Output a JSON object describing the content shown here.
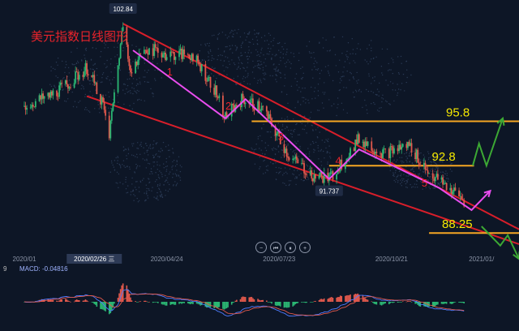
{
  "chart_data": {
    "type": "candlestick",
    "title": "美元指数日线图形",
    "price_axis": {
      "min": 87,
      "max": 104
    },
    "time_axis": {
      "start": "2020-01-01",
      "end": "2021-01-31"
    },
    "date_labels": [
      {
        "date": "2020-01-01",
        "text": "2020/01"
      },
      {
        "date": "2020-04-24",
        "text": "2020/04/24"
      },
      {
        "date": "2020-07-23",
        "text": "2020/07/23"
      },
      {
        "date": "2020-10-21",
        "text": "2020/10/21"
      },
      {
        "date": "2021-01-01",
        "text": "2021/01/"
      }
    ],
    "cursor_date_label": "2020/02/26 三",
    "price_tags": [
      {
        "date": "2020-03-20",
        "price": 102.84,
        "text": "102.84"
      },
      {
        "date": "2020-09-01",
        "price": 91.737,
        "text": "91.737"
      }
    ],
    "horizontal_levels": [
      {
        "price": 95.8,
        "text": "95.8",
        "color": "#f5a623",
        "start": "2020-07-01",
        "end": "2021-01-31"
      },
      {
        "price": 92.8,
        "text": "92.8",
        "color": "#f5a623",
        "start": "2020-09-01",
        "end": "2020-12-26"
      },
      {
        "price": 88.25,
        "text": "88.25",
        "color": "#f5a623",
        "start": "2020-11-20",
        "end": "2021-01-31"
      }
    ],
    "trend_lines": [
      {
        "name": "upper",
        "color": "#d81e2a",
        "from": {
          "date": "2020-03-20",
          "price": 102.4
        },
        "to": {
          "date": "2021-01-31",
          "price": 88.5
        }
      },
      {
        "name": "lower",
        "color": "#d81e2a",
        "from": {
          "date": "2020-02-20",
          "price": 97.5
        },
        "to": {
          "date": "2021-01-31",
          "price": 87.5
        }
      }
    ],
    "wave_path": {
      "color": "#e94dee",
      "points": [
        {
          "date": "2020-03-28",
          "price": 100.6
        },
        {
          "date": "2020-06-10",
          "price": 96.0
        },
        {
          "date": "2020-06-26",
          "price": 97.3
        },
        {
          "date": "2020-09-01",
          "price": 91.9
        },
        {
          "date": "2020-09-25",
          "price": 93.9
        },
        {
          "date": "2020-11-28",
          "price": 91.3
        },
        {
          "date": "2020-12-24",
          "price": 89.8
        },
        {
          "date": "2021-01-08",
          "price": 91.1
        }
      ]
    },
    "wave_labels": [
      {
        "text": "1",
        "date": "2020-04-24",
        "price": 98.9
      },
      {
        "text": "2",
        "date": "2020-06-10",
        "price": 96.6
      },
      {
        "text": "3",
        "date": "2020-07-22",
        "price": 94.5
      },
      {
        "text": "4",
        "date": "2020-09-06",
        "price": 92.9
      },
      {
        "text": "5",
        "date": "2020-11-14",
        "price": 91.4
      }
    ],
    "projection_arrows": [
      {
        "color": "#3ca834",
        "points": [
          {
            "date": "2020-12-25",
            "price": 92.8
          },
          {
            "date": "2020-12-30",
            "price": 94.3
          },
          {
            "date": "2021-01-05",
            "price": 92.8
          },
          {
            "date": "2021-01-18",
            "price": 96.0
          }
        ]
      },
      {
        "color": "#3ca834",
        "points": [
          {
            "date": "2021-01-01",
            "price": 88.7
          },
          {
            "date": "2021-01-16",
            "price": 87.4
          },
          {
            "date": "2021-01-22",
            "price": 88.1
          },
          {
            "date": "2021-01-31",
            "price": 86.5
          }
        ]
      }
    ],
    "candles": [],
    "macd": {
      "label": "MACD: -0.04816",
      "bars": []
    }
  },
  "controls": {
    "buttons": [
      {
        "name": "zoom-out-button",
        "symbol": "−"
      },
      {
        "name": "prev-button",
        "symbol": "⏮"
      },
      {
        "name": "pause-button",
        "symbol": "⏸"
      },
      {
        "name": "zoom-in-button",
        "symbol": "+"
      }
    ]
  },
  "colors": {
    "background": "#0d1626",
    "up_candle": "#2bb673",
    "down_candle": "#e0584c",
    "trend_line": "#d81e2a",
    "level_line": "#f5a623",
    "wave": "#e94dee",
    "projection": "#3ca834",
    "level_text": "#f5e900",
    "title": "#e8232b"
  }
}
